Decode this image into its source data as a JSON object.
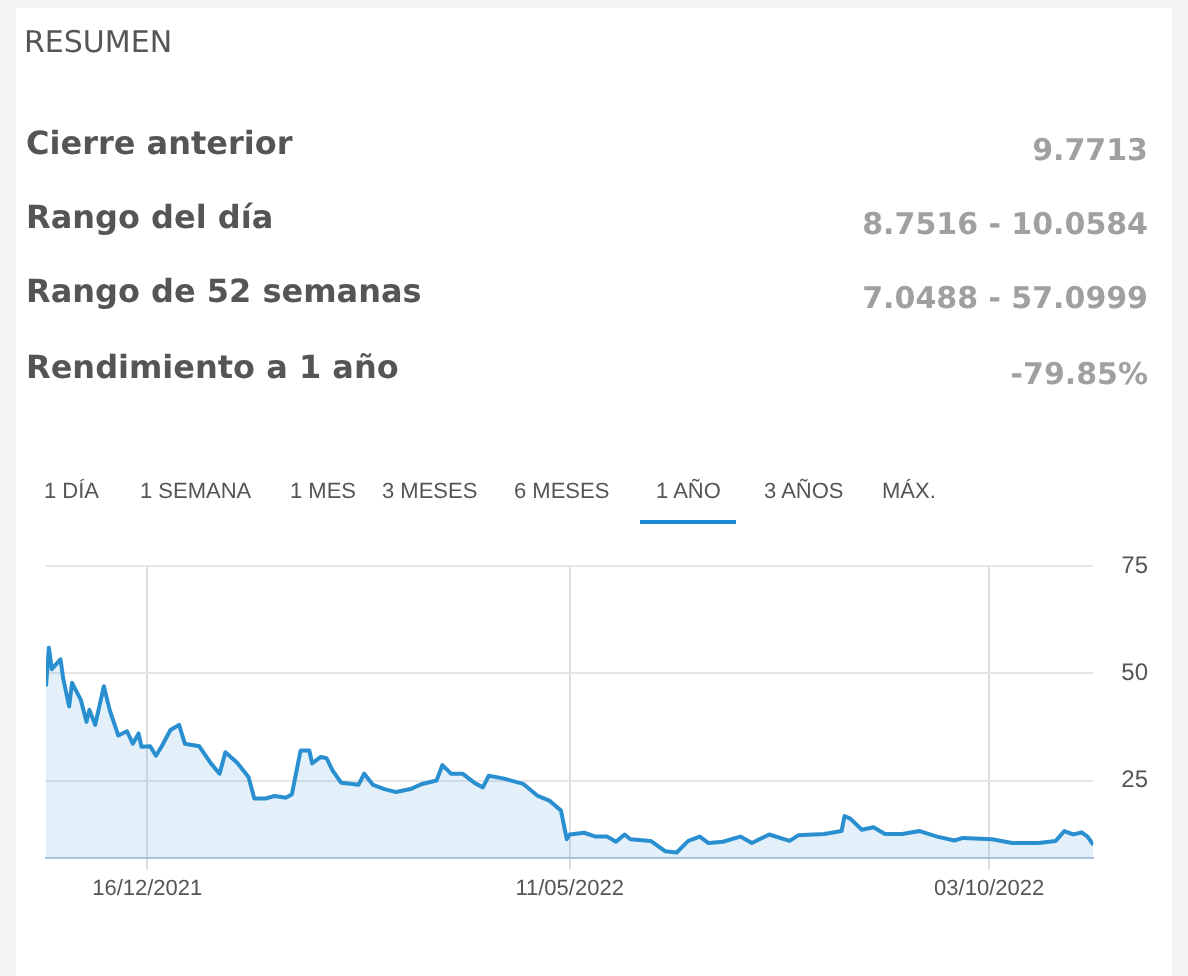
{
  "chart_data": {
    "type": "area",
    "title": "RESUMEN",
    "annotations": [
      "Cierre anterior",
      "9.7713",
      "Rango del día",
      "8.7516 - 10.0584",
      "Rango de 52 semanas",
      "7.0488 - 57.0999",
      "Rendimiento a 1 año",
      "-79.85%",
      "1 DÍA",
      "1 SEMANA",
      "1 MES",
      "3 MESES",
      "6 MESES",
      "1 AÑO",
      "3 AÑOS",
      "MÁX."
    ],
    "x": [
      "2021-11-11",
      "2021-11-12",
      "2021-11-13",
      "2021-11-16",
      "2021-11-17",
      "2021-11-19",
      "2021-11-20",
      "2021-11-23",
      "2021-11-25",
      "2021-11-26",
      "2021-11-28",
      "2021-12-01",
      "2021-12-03",
      "2021-12-06",
      "2021-12-09",
      "2021-12-11",
      "2021-12-13",
      "2021-12-14",
      "2021-12-17",
      "2021-12-19",
      "2021-12-21",
      "2021-12-24",
      "2021-12-27",
      "2021-12-29",
      "2022-01-03",
      "2022-01-07",
      "2022-01-10",
      "2022-01-12",
      "2022-01-16",
      "2022-01-20",
      "2022-01-22",
      "2022-01-26",
      "2022-01-29",
      "2022-02-02",
      "2022-02-04",
      "2022-02-07",
      "2022-02-10",
      "2022-02-11",
      "2022-02-14",
      "2022-02-16",
      "2022-02-18",
      "2022-02-21",
      "2022-02-25",
      "2022-02-27",
      "2022-03-01",
      "2022-03-04",
      "2022-03-08",
      "2022-03-12",
      "2022-03-17",
      "2022-03-21",
      "2022-03-26",
      "2022-03-28",
      "2022-03-31",
      "2022-04-04",
      "2022-04-08",
      "2022-04-11",
      "2022-04-13",
      "2022-04-18",
      "2022-04-25",
      "2022-04-30",
      "2022-05-04",
      "2022-05-08",
      "2022-05-10",
      "2022-05-11",
      "2022-05-16",
      "2022-05-20",
      "2022-05-24",
      "2022-05-27",
      "2022-05-30",
      "2022-06-01",
      "2022-06-08",
      "2022-06-13",
      "2022-06-17",
      "2022-06-21",
      "2022-06-25",
      "2022-06-28",
      "2022-07-03",
      "2022-07-09",
      "2022-07-13",
      "2022-07-19",
      "2022-07-26",
      "2022-07-29",
      "2022-08-07",
      "2022-08-13",
      "2022-08-14",
      "2022-08-16",
      "2022-08-20",
      "2022-08-24",
      "2022-08-28",
      "2022-09-03",
      "2022-09-09",
      "2022-09-15",
      "2022-09-21",
      "2022-09-24",
      "2022-10-04",
      "2022-10-11",
      "2022-10-20",
      "2022-10-26",
      "2022-10-29",
      "2022-11-01",
      "2022-11-04",
      "2022-11-06",
      "2022-11-08"
    ],
    "series": [
      {
        "color": "#2a8fd1",
        "values": [
          47,
          56,
          51,
          53.3,
          48.6,
          42.3,
          47.8,
          43.9,
          38.7,
          41.5,
          38,
          47,
          41.5,
          35.5,
          36.5,
          33.6,
          36,
          32.9,
          33,
          30.8,
          33,
          36.8,
          38,
          33.6,
          33,
          29,
          26.6,
          31.6,
          29.2,
          25.8,
          20.8,
          20.8,
          21.4,
          21,
          21.8,
          32,
          32,
          29,
          30.5,
          30.2,
          27.4,
          24.5,
          24.2,
          24,
          26.6,
          24,
          23,
          22.3,
          23,
          24.2,
          25,
          28.6,
          26.6,
          26.6,
          24.5,
          23.4,
          26.1,
          25.5,
          24.2,
          21.4,
          20.3,
          18,
          11.3,
          12.4,
          12.8,
          11.9,
          11.9,
          10.7,
          12.4,
          11.3,
          10.9,
          8.5,
          8.2,
          10.9,
          11.9,
          10.4,
          10.7,
          11.9,
          10.4,
          12.4,
          10.9,
          12.2,
          12.5,
          13.2,
          16.7,
          16.1,
          13.5,
          14.1,
          12.5,
          12.5,
          13.2,
          11.9,
          11,
          11.6,
          11.3,
          10.4,
          10.4,
          10.9,
          13.2,
          12.4,
          12.9,
          11.9,
          10
        ]
      }
    ],
    "xlim": [
      "2021-11-11",
      "2022-11-08"
    ],
    "xticks": [
      {
        "value": "2021-12-16",
        "label": "16/12/2021"
      },
      {
        "value": "2022-05-11",
        "label": "11/05/2022"
      },
      {
        "value": "2022-10-03",
        "label": "03/10/2022"
      }
    ],
    "ylim": [
      7,
      75
    ],
    "yticks": [
      25,
      50,
      75
    ],
    "grid": true,
    "legend": false,
    "marker": "none",
    "line_style": "solid"
  }
}
